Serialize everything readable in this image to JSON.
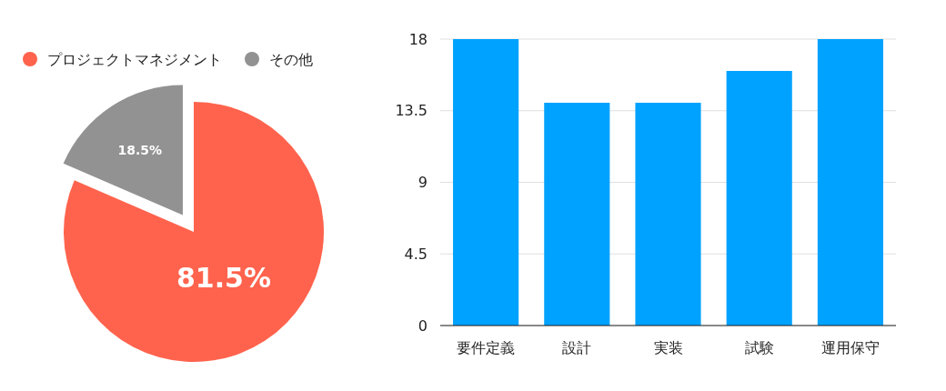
{
  "chart_data": [
    {
      "type": "pie",
      "categories": [
        "プロジェクトマネジメント",
        "その他"
      ],
      "values": [
        81.5,
        18.5
      ],
      "colors": [
        "#ff634d",
        "#929292"
      ],
      "value_labels": [
        "81.5%",
        "18.5%"
      ],
      "legend": "top left"
    },
    {
      "type": "bar",
      "categories": [
        "要件定義",
        "設計",
        "実装",
        "試験",
        "運用保守"
      ],
      "values": [
        18,
        14,
        14,
        16,
        18
      ],
      "color": "#00a2ff",
      "ylim": [
        0,
        18
      ],
      "yticks": [
        0,
        4.5,
        9,
        13.5,
        18
      ],
      "grid": "y"
    }
  ]
}
